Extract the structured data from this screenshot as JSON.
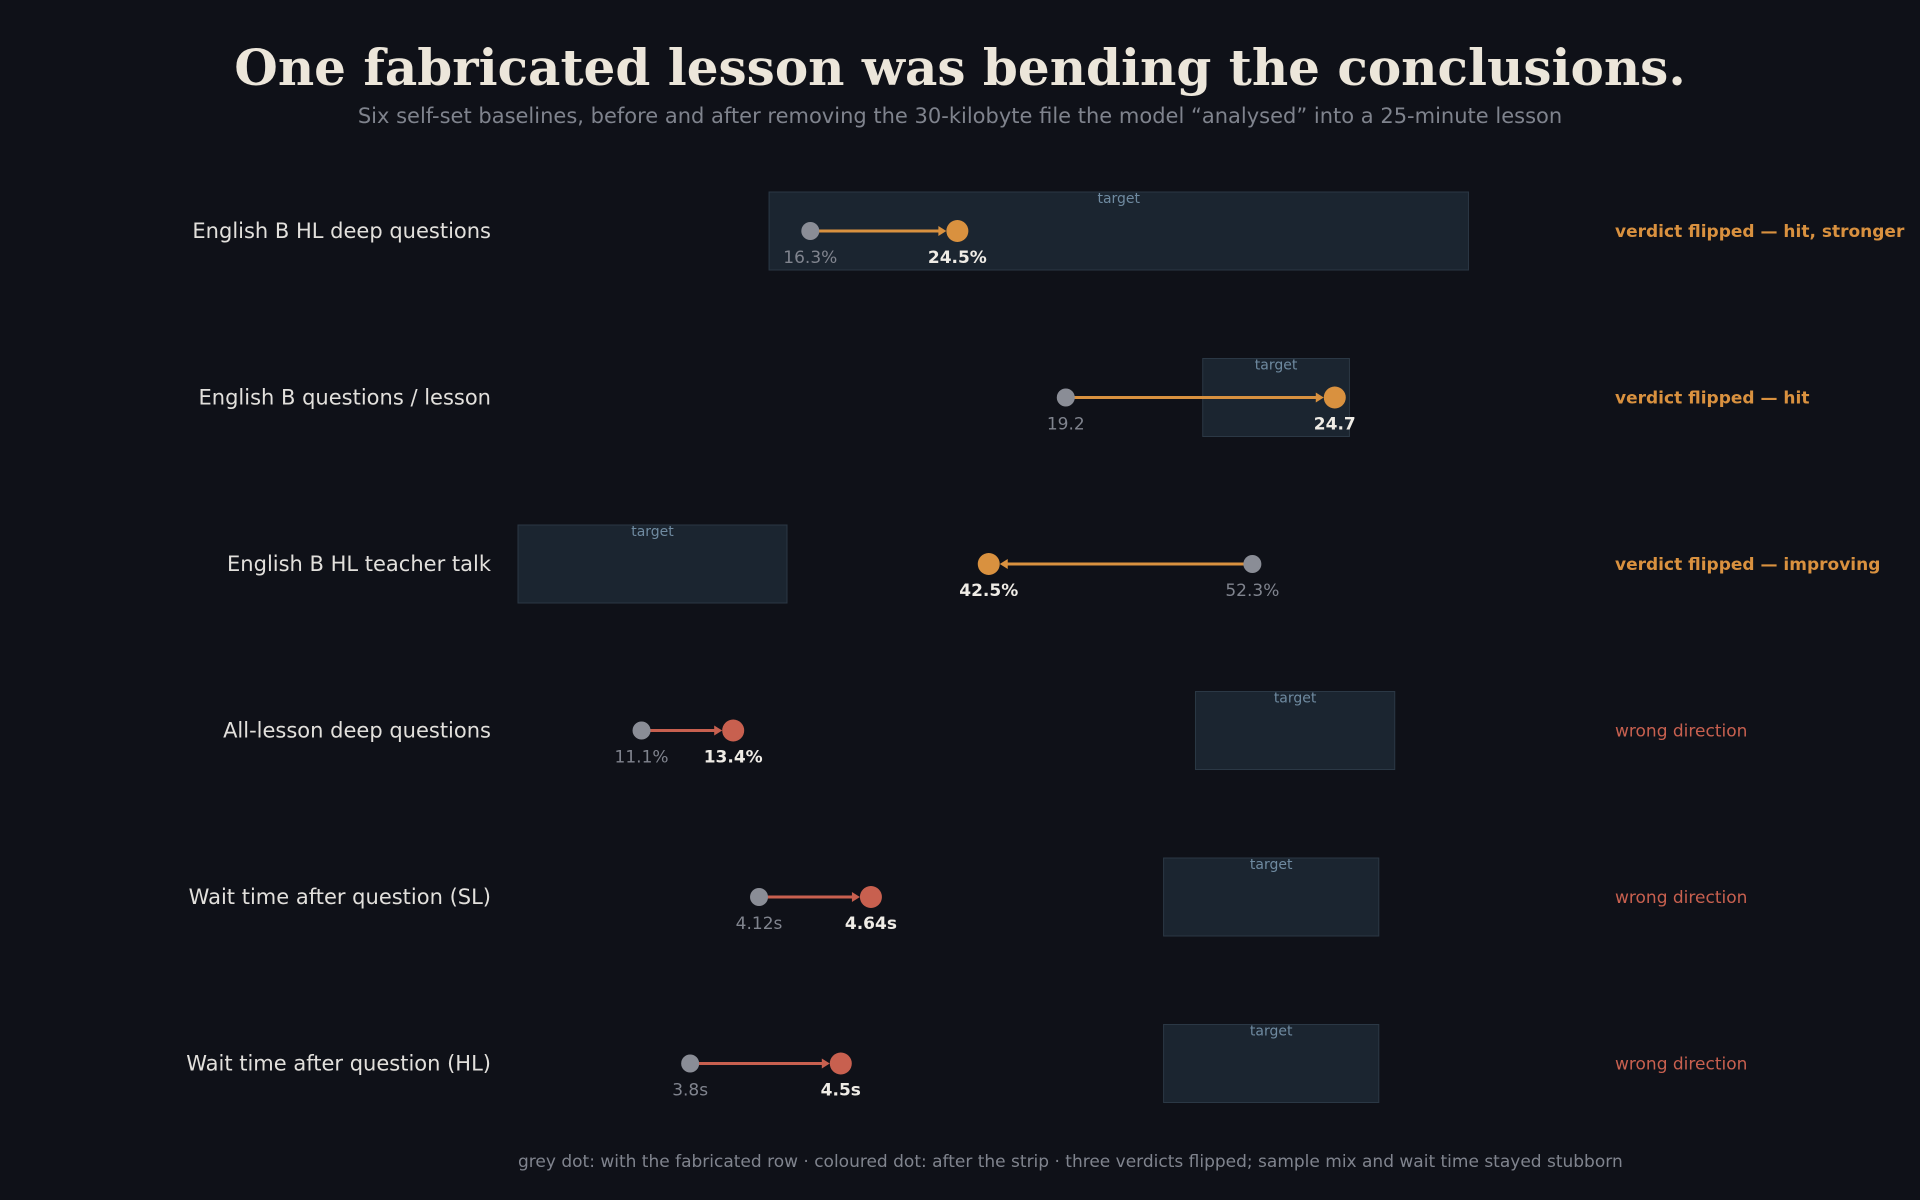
{
  "title": "One fabricated lesson was bending the conclusions.",
  "subtitle": "Six self-set baselines, before and after removing the 30-kilobyte file the model “analysed” into a 25-minute lesson",
  "footer": "grey dot: with the fabricated row · coloured dot: after the strip · three verdicts flipped; sample mix and wait time stayed stubborn",
  "target_label": "target",
  "colors": {
    "background": "#0f1118",
    "before_dot": "#8a8d96",
    "flipped": "#d9913f",
    "wrong": "#c8604f",
    "target_fill": "#1b2530",
    "target_stroke": "#2b3845",
    "target_text": "#6f8aa0"
  },
  "chart_data": {
    "type": "dumbbell",
    "title": "One fabricated lesson was bending the conclusions.",
    "subtitle": "Six self-set baselines, before and after removing the 30-kilobyte file the model “analysed” into a 25-minute lesson",
    "series": [
      {
        "name": "with the fabricated row",
        "key": "before"
      },
      {
        "name": "after the strip",
        "key": "after"
      }
    ],
    "rows": [
      {
        "label": "English B HL deep questions",
        "before": 16.3,
        "after": 24.5,
        "before_label": "16.3%",
        "after_label": "24.5%",
        "target": [
          14.0,
          53.0
        ],
        "domain": [
          0,
          60
        ],
        "status": "flipped",
        "verdict": "verdict flipped — hit, stronger"
      },
      {
        "label": "English B questions / lesson",
        "before": 19.2,
        "after": 24.7,
        "before_label": "19.2",
        "after_label": "24.7",
        "target": [
          22.0,
          25.0
        ],
        "domain": [
          8,
          30
        ],
        "status": "flipped",
        "verdict": "verdict flipped — hit"
      },
      {
        "label": "English B HL teacher talk",
        "before": 52.3,
        "after": 42.5,
        "before_label": "52.3%",
        "after_label": "42.5%",
        "target": [
          25.0,
          35.0
        ],
        "domain": [
          25,
          65
        ],
        "status": "flipped",
        "verdict": "verdict flipped — improving"
      },
      {
        "label": "All-lesson deep questions",
        "before": 11.1,
        "after": 13.4,
        "before_label": "11.1%",
        "after_label": "13.4%",
        "target": [
          25.0,
          30.0
        ],
        "domain": [
          8,
          35
        ],
        "status": "wrong",
        "verdict": "wrong direction"
      },
      {
        "label": "Wait time after question (SL)",
        "before": 4.12,
        "after": 4.64,
        "before_label": "4.12s",
        "after_label": "4.64s",
        "target": [
          6.0,
          7.0
        ],
        "domain": [
          3,
          8
        ],
        "status": "wrong",
        "verdict": "wrong direction"
      },
      {
        "label": "Wait time after question (HL)",
        "before": 3.8,
        "after": 4.5,
        "before_label": "3.8s",
        "after_label": "4.5s",
        "target": [
          6.0,
          7.0
        ],
        "domain": [
          3,
          8
        ],
        "status": "wrong",
        "verdict": "wrong direction"
      }
    ]
  }
}
